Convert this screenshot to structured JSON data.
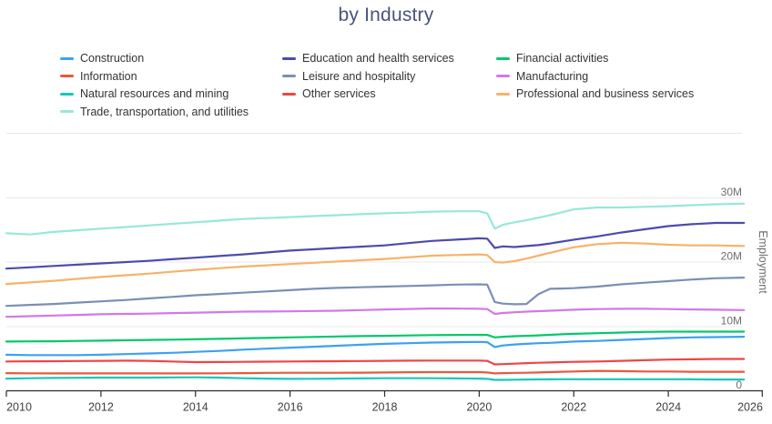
{
  "title": "by Industry",
  "colors": {
    "title_text": "#475577",
    "legend_text": "#333333",
    "x_axis_text": "#3F3F3F",
    "y_axis_text": "#6E6E6E",
    "gridline": "#E8E8E8",
    "axis_line": "#2B2B2B",
    "background": "#FFFFFF"
  },
  "chart_data": {
    "type": "line",
    "title": "by Industry",
    "xlabel": "",
    "ylabel": "Employment",
    "unit": "millions of jobs",
    "xlim": [
      2010,
      2026.2
    ],
    "ylim": [
      0,
      42
    ],
    "grid": "horizontal",
    "legend_position": "top",
    "x_ticks": [
      {
        "value": 2010,
        "label": "2010"
      },
      {
        "value": 2012,
        "label": "2012"
      },
      {
        "value": 2014,
        "label": "2014"
      },
      {
        "value": 2016,
        "label": "2016"
      },
      {
        "value": 2018,
        "label": "2018"
      },
      {
        "value": 2020,
        "label": "2020"
      },
      {
        "value": 2022,
        "label": "2022"
      },
      {
        "value": 2024,
        "label": "2024"
      },
      {
        "value": 2026,
        "label": "2026"
      }
    ],
    "y_ticks": [
      {
        "value": 0,
        "label": "0"
      },
      {
        "value": 10,
        "label": "10M"
      },
      {
        "value": 20,
        "label": "20M"
      },
      {
        "value": 30,
        "label": "30M"
      },
      {
        "value": 40,
        "label": ""
      }
    ],
    "x": [
      2010,
      2010.5,
      2011,
      2011.5,
      2012,
      2012.5,
      2013,
      2013.5,
      2014,
      2014.5,
      2015,
      2015.5,
      2016,
      2016.5,
      2017,
      2017.5,
      2018,
      2018.5,
      2019,
      2019.5,
      2020,
      2020.17,
      2020.33,
      2020.5,
      2020.75,
      2021,
      2021.25,
      2021.5,
      2021.75,
      2022,
      2022.5,
      2023,
      2023.5,
      2024,
      2024.5,
      2025,
      2025.6
    ],
    "series": [
      {
        "name": "Construction",
        "color": "#3BA1F2",
        "values": [
          5.6,
          5.55,
          5.55,
          5.55,
          5.6,
          5.7,
          5.8,
          5.9,
          6.05,
          6.2,
          6.4,
          6.55,
          6.7,
          6.85,
          7.0,
          7.15,
          7.3,
          7.4,
          7.5,
          7.55,
          7.6,
          7.55,
          6.8,
          7.05,
          7.2,
          7.3,
          7.4,
          7.45,
          7.55,
          7.65,
          7.75,
          7.9,
          8.05,
          8.2,
          8.3,
          8.35,
          8.4
        ]
      },
      {
        "name": "Education and health services",
        "color": "#4C4BAE",
        "values": [
          19.0,
          19.2,
          19.4,
          19.6,
          19.8,
          20.0,
          20.2,
          20.45,
          20.7,
          20.95,
          21.2,
          21.5,
          21.8,
          22.0,
          22.2,
          22.4,
          22.6,
          22.95,
          23.3,
          23.5,
          23.7,
          23.65,
          22.2,
          22.45,
          22.35,
          22.5,
          22.65,
          22.9,
          23.2,
          23.5,
          24.0,
          24.6,
          25.1,
          25.6,
          25.9,
          26.1,
          26.1
        ]
      },
      {
        "name": "Financial activities",
        "color": "#03C86A",
        "values": [
          7.65,
          7.68,
          7.7,
          7.75,
          7.8,
          7.85,
          7.9,
          7.95,
          8.0,
          8.08,
          8.15,
          8.22,
          8.3,
          8.38,
          8.45,
          8.5,
          8.55,
          8.6,
          8.65,
          8.68,
          8.7,
          8.68,
          8.3,
          8.4,
          8.48,
          8.55,
          8.62,
          8.7,
          8.78,
          8.85,
          8.95,
          9.05,
          9.15,
          9.2,
          9.2,
          9.2,
          9.2
        ]
      },
      {
        "name": "Information",
        "color": "#E8593C",
        "values": [
          2.75,
          2.72,
          2.7,
          2.7,
          2.7,
          2.7,
          2.7,
          2.7,
          2.7,
          2.72,
          2.75,
          2.78,
          2.8,
          2.8,
          2.8,
          2.82,
          2.85,
          2.88,
          2.9,
          2.9,
          2.9,
          2.85,
          2.7,
          2.75,
          2.78,
          2.8,
          2.85,
          2.9,
          2.95,
          3.0,
          3.1,
          3.05,
          3.0,
          3.0,
          2.95,
          2.95,
          2.95
        ]
      },
      {
        "name": "Leisure and hospitality",
        "color": "#7A8FB5",
        "values": [
          13.2,
          13.35,
          13.5,
          13.7,
          13.9,
          14.1,
          14.35,
          14.6,
          14.85,
          15.05,
          15.25,
          15.45,
          15.65,
          15.85,
          16.0,
          16.1,
          16.2,
          16.3,
          16.4,
          16.5,
          16.55,
          16.5,
          13.8,
          13.55,
          13.45,
          13.5,
          15.0,
          15.85,
          15.9,
          15.95,
          16.2,
          16.55,
          16.8,
          17.05,
          17.3,
          17.5,
          17.6
        ]
      },
      {
        "name": "Manufacturing",
        "color": "#D278E8",
        "values": [
          11.5,
          11.6,
          11.7,
          11.8,
          11.9,
          11.95,
          12.0,
          12.08,
          12.15,
          12.22,
          12.3,
          12.32,
          12.35,
          12.4,
          12.45,
          12.55,
          12.65,
          12.72,
          12.8,
          12.78,
          12.75,
          12.7,
          11.95,
          12.1,
          12.2,
          12.3,
          12.38,
          12.45,
          12.52,
          12.6,
          12.7,
          12.75,
          12.75,
          12.7,
          12.65,
          12.6,
          12.55
        ]
      },
      {
        "name": "Natural resources and mining",
        "color": "#18C8B8",
        "values": [
          1.9,
          1.95,
          2.0,
          2.02,
          2.05,
          2.05,
          2.05,
          2.08,
          2.1,
          2.05,
          1.95,
          1.9,
          1.85,
          1.87,
          1.9,
          1.92,
          1.95,
          1.95,
          1.95,
          1.93,
          1.9,
          1.85,
          1.7,
          1.7,
          1.72,
          1.75,
          1.77,
          1.78,
          1.79,
          1.8,
          1.8,
          1.8,
          1.8,
          1.8,
          1.78,
          1.75,
          1.75
        ]
      },
      {
        "name": "Other services",
        "color": "#EF4545",
        "values": [
          4.55,
          4.58,
          4.6,
          4.62,
          4.65,
          4.68,
          4.65,
          4.55,
          4.45,
          4.47,
          4.5,
          4.52,
          4.55,
          4.58,
          4.6,
          4.62,
          4.65,
          4.68,
          4.7,
          4.7,
          4.7,
          4.65,
          4.1,
          4.15,
          4.22,
          4.3,
          4.35,
          4.4,
          4.45,
          4.5,
          4.55,
          4.65,
          4.75,
          4.85,
          4.9,
          4.95,
          4.95
        ]
      },
      {
        "name": "Professional and business services",
        "color": "#F7B269",
        "values": [
          16.6,
          16.85,
          17.1,
          17.4,
          17.7,
          17.95,
          18.2,
          18.5,
          18.8,
          19.05,
          19.3,
          19.5,
          19.7,
          19.9,
          20.1,
          20.3,
          20.5,
          20.75,
          21.0,
          21.1,
          21.2,
          21.1,
          20.0,
          19.95,
          20.15,
          20.55,
          21.0,
          21.45,
          21.9,
          22.3,
          22.8,
          23.0,
          22.9,
          22.7,
          22.6,
          22.6,
          22.5
        ]
      },
      {
        "name": "Trade, transportation, and utilities",
        "color": "#98E7D9",
        "values": [
          24.5,
          24.3,
          24.7,
          24.95,
          25.2,
          25.45,
          25.7,
          25.95,
          26.2,
          26.45,
          26.7,
          26.85,
          27.0,
          27.15,
          27.3,
          27.45,
          27.6,
          27.7,
          27.85,
          27.9,
          27.9,
          27.6,
          25.2,
          25.8,
          26.2,
          26.5,
          26.9,
          27.3,
          27.75,
          28.2,
          28.5,
          28.5,
          28.6,
          28.7,
          28.85,
          29.0,
          29.1
        ]
      }
    ]
  }
}
